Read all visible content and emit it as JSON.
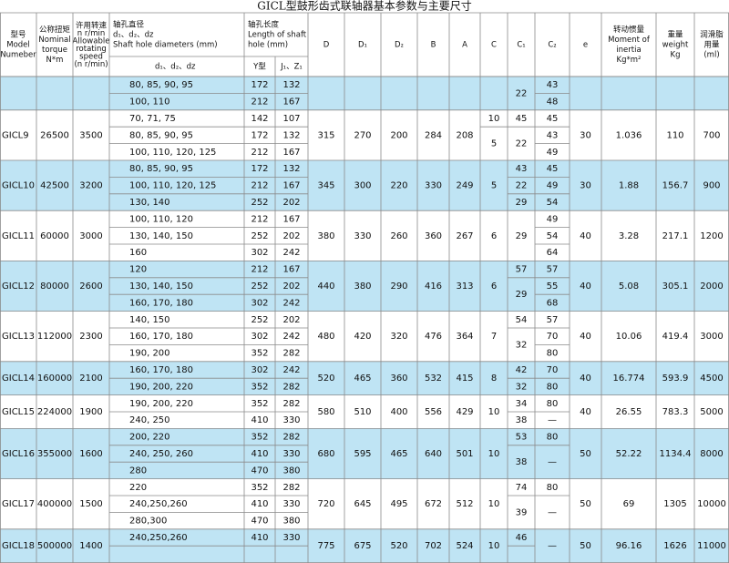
{
  "title": "GICL型鼓形齿式联轴器基本参数与主要尺寸",
  "header": [
    {
      "lines": [
        "型号",
        "Model",
        "Numeber"
      ]
    },
    {
      "lines": [
        "公称扭矩",
        "Nominal",
        "torque",
        "N*m"
      ]
    },
    {
      "lines": [
        "许用转速",
        "n r/min",
        "Allowable",
        "rotating",
        "speed",
        "(n r/min)"
      ]
    },
    {
      "lines": [
        "轴孔直径",
        "d₁、d₂、dz",
        "Shaft hole diameters (mm)"
      ]
    },
    {
      "lines": [
        "轴孔长度",
        "Length of shaft",
        "hole (mm)"
      ]
    },
    {
      "lines": [
        "D"
      ]
    },
    {
      "lines": [
        "D₁"
      ]
    },
    {
      "lines": [
        "D₂"
      ]
    },
    {
      "lines": [
        "B"
      ]
    },
    {
      "lines": [
        "A"
      ]
    },
    {
      "lines": [
        "C"
      ]
    },
    {
      "lines": [
        "C₁"
      ]
    },
    {
      "lines": [
        "C₂"
      ]
    },
    {
      "lines": [
        "e"
      ]
    },
    {
      "lines": [
        "转动惯量",
        "Moment of",
        "inertia",
        "Kg*m²"
      ]
    },
    {
      "lines": [
        "重量",
        "weight",
        "Kg"
      ]
    },
    {
      "lines": [
        "润滑脂",
        "用量",
        "(ml)"
      ]
    }
  ],
  "subheader": [
    "d₁、d₂、dz",
    "Y型",
    "J₁、Z₁"
  ],
  "groups": [
    {
      "shafts": [
        [
          "80, 85, 90, 95",
          172,
          132
        ],
        [
          "100, 110",
          212,
          167
        ]
      ],
      "C1": [
        22
      ],
      "C2": [
        43,
        48
      ]
    },
    {
      "model": "GICL9",
      "torque": 26500,
      "speed": 3500,
      "shafts": [
        [
          "70, 71, 75",
          142,
          107
        ],
        [
          "80, 85, 90, 95",
          172,
          132
        ],
        [
          "100, 110, 120, 125",
          212,
          167
        ]
      ],
      "D": 315,
      "D1": 270,
      "D2": 200,
      "B": 284,
      "A": 208,
      "C": [
        10,
        5
      ],
      "C1": [
        45,
        22
      ],
      "C2": [
        45,
        43,
        49
      ],
      "e": 30,
      "inertia": 1.036,
      "weight": 110,
      "oil": 700
    },
    {
      "model": "GICL10",
      "torque": 42500,
      "speed": 3200,
      "shafts": [
        [
          "80, 85, 90, 95",
          172,
          132
        ],
        [
          "100, 110, 120, 125",
          212,
          167
        ],
        [
          "130, 140",
          252,
          202
        ]
      ],
      "D": 345,
      "D1": 300,
      "D2": 220,
      "B": 330,
      "A": 249,
      "C": [
        5
      ],
      "C1": [
        43,
        22,
        29
      ],
      "C2": [
        45,
        49,
        54
      ],
      "e": 30,
      "inertia": 1.88,
      "weight": 156.7,
      "oil": 900
    },
    {
      "model": "GICL11",
      "torque": 60000,
      "speed": 3000,
      "shafts": [
        [
          "100, 110, 120",
          212,
          167
        ],
        [
          "130, 140, 150",
          252,
          202
        ],
        [
          "160",
          302,
          242
        ]
      ],
      "D": 380,
      "D1": 330,
      "D2": 260,
      "B": 360,
      "A": 267,
      "C": [
        6
      ],
      "C1": [
        29
      ],
      "C2": [
        49,
        54,
        64
      ],
      "e": 40,
      "inertia": 3.28,
      "weight": 217.1,
      "oil": 1200
    },
    {
      "model": "GICL12",
      "torque": 80000,
      "speed": 2600,
      "shafts": [
        [
          "120",
          212,
          167
        ],
        [
          "130, 140, 150",
          252,
          202
        ],
        [
          "160, 170, 180",
          302,
          242
        ]
      ],
      "D": 440,
      "D1": 380,
      "D2": 290,
      "B": 416,
      "A": 313,
      "C": [
        6
      ],
      "C1": [
        57,
        29
      ],
      "C2": [
        57,
        55,
        68
      ],
      "e": 40,
      "inertia": 5.08,
      "weight": 305.1,
      "oil": 2000
    },
    {
      "model": "GICL13",
      "torque": 112000,
      "speed": 2300,
      "shafts": [
        [
          "140, 150",
          252,
          202
        ],
        [
          "160, 170, 180",
          302,
          242
        ],
        [
          "190, 200",
          352,
          282
        ]
      ],
      "D": 480,
      "D1": 420,
      "D2": 320,
      "B": 476,
      "A": 364,
      "C": [
        7
      ],
      "C1": [
        54,
        32
      ],
      "C2": [
        57,
        70,
        80
      ],
      "e": 40,
      "inertia": 10.06,
      "weight": 419.4,
      "oil": 3000
    },
    {
      "model": "GICL14",
      "torque": 160000,
      "speed": 2100,
      "shafts": [
        [
          "160, 170, 180",
          302,
          242
        ],
        [
          "190, 200, 220",
          352,
          282
        ]
      ],
      "D": 520,
      "D1": 465,
      "D2": 360,
      "B": 532,
      "A": 415,
      "C": [
        8
      ],
      "C1": [
        42,
        32
      ],
      "C2": [
        70,
        80
      ],
      "e": 40,
      "inertia": 16.774,
      "weight": 593.9,
      "oil": 4500
    },
    {
      "model": "GICL15",
      "torque": 224000,
      "speed": 1900,
      "shafts": [
        [
          "190, 200, 220",
          352,
          282
        ],
        [
          "240, 250",
          410,
          330
        ]
      ],
      "D": 580,
      "D1": 510,
      "D2": 400,
      "B": 556,
      "A": 429,
      "C": [
        10
      ],
      "C1": [
        34,
        38
      ],
      "C2": [
        80,
        "—"
      ],
      "e": 40,
      "inertia": 26.55,
      "weight": 783.3,
      "oil": 5000
    },
    {
      "model": "GICL16",
      "torque": 355000,
      "speed": 1600,
      "shafts": [
        [
          "200, 220",
          352,
          282
        ],
        [
          "240, 250, 260",
          410,
          330
        ],
        [
          "280",
          470,
          380
        ]
      ],
      "D": 680,
      "D1": 595,
      "D2": 465,
      "B": 640,
      "A": 501,
      "C": [
        10
      ],
      "C1": [
        53,
        38
      ],
      "C2": [
        80,
        "—"
      ],
      "e": 50,
      "inertia": 52.22,
      "weight": 1134.4,
      "oil": 8000
    },
    {
      "model": "GICL17",
      "torque": 400000,
      "speed": 1500,
      "shafts": [
        [
          "220",
          352,
          282
        ],
        [
          "240,250,260",
          410,
          330
        ],
        [
          "280,300",
          470,
          380
        ]
      ],
      "D": 720,
      "D1": 645,
      "D2": 495,
      "B": 672,
      "A": 512,
      "C": [
        10
      ],
      "C1": [
        74,
        39
      ],
      "C2": [
        80,
        "—"
      ],
      "e": 50,
      "inertia": 69,
      "weight": 1305,
      "oil": 10000
    },
    {
      "model": "GICL18",
      "torque": 500000,
      "speed": 1400,
      "shafts": [
        [
          "240,250,260",
          410,
          330
        ]
      ],
      "D": 775,
      "D1": 675,
      "D2": 520,
      "B": 702,
      "A": 524,
      "C": [
        10
      ],
      "C1": [
        46
      ],
      "C2": [
        "—"
      ],
      "e": 50,
      "inertia": 96.16,
      "weight": 1626,
      "oil": 11000
    }
  ]
}
